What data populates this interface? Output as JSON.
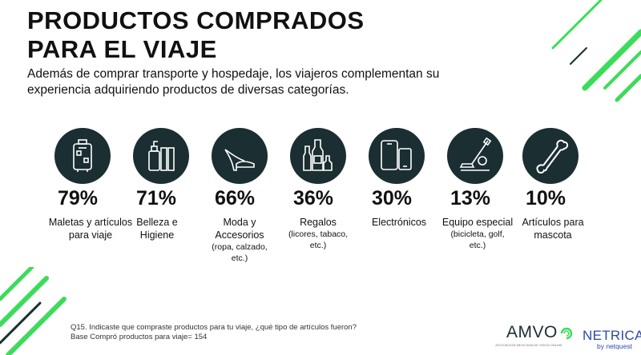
{
  "slide": {
    "title_line1": "PRODUCTOS COMPRADOS",
    "title_line2": "PARA EL VIAJE",
    "subtitle": "Además de comprar transporte y hospedaje, los viajeros complementan su experiencia adquiriendo productos de diversas categorías."
  },
  "categories": [
    {
      "icon": "suitcase-icon",
      "percent": "79%",
      "label": "Maletas y artículos para viaje",
      "detail": ""
    },
    {
      "icon": "cosmetics-icon",
      "percent": "71%",
      "label": "Belleza e Higiene",
      "detail": ""
    },
    {
      "icon": "high-heel-icon",
      "percent": "66%",
      "label": "Moda y Accesorios",
      "detail": "(ropa, calzado, etc.)"
    },
    {
      "icon": "bottles-icon",
      "percent": "36%",
      "label": "Regalos",
      "detail": "(licores, tabaco, etc.)"
    },
    {
      "icon": "devices-icon",
      "percent": "30%",
      "label": "Electrónicos",
      "detail": ""
    },
    {
      "icon": "golf-icon",
      "percent": "13%",
      "label": "Equipo especial",
      "detail": "(bicicleta, golf, etc.)"
    },
    {
      "icon": "bone-icon",
      "percent": "10%",
      "label": "Artículos para mascota",
      "detail": ""
    }
  ],
  "footer": {
    "question": "Q15. Indicaste que compraste productos para tu viaje, ¿qué tipo de artículos fueron?",
    "base": "Base Compró productos para viaje= 154",
    "logo_amvo": "AMVO",
    "logo_amvo_tagline": "ASOCIACIÓN MEXICANA DE VENTA ONLINE",
    "logo_netrica": "NETRICA",
    "logo_netquest": "by netquest"
  },
  "colors": {
    "circle": "#1b2e32",
    "icon_stroke": "#ffffff",
    "accent_green": "#3cdc5a",
    "accent_dark": "#1b2e32",
    "netrica_blue": "#2d4aa8"
  }
}
